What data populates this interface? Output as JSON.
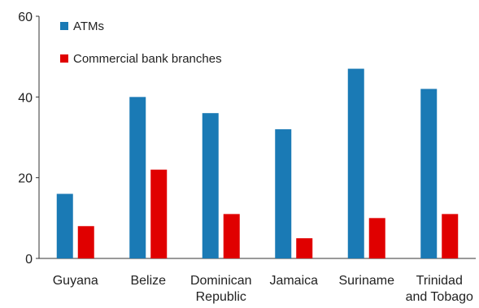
{
  "chart_data": {
    "type": "bar",
    "categories": [
      [
        "Guyana"
      ],
      [
        "Belize"
      ],
      [
        "Dominican",
        "Republic"
      ],
      [
        "Jamaica"
      ],
      [
        "Suriname"
      ],
      [
        "Trinidad",
        "and Tobago"
      ]
    ],
    "series": [
      {
        "name": "ATMs",
        "color": "#1a7ab5",
        "values": [
          16,
          40,
          36,
          32,
          47,
          42
        ]
      },
      {
        "name": "Commercial bank branches",
        "color": "#e00000",
        "values": [
          8,
          22,
          11,
          5,
          10,
          11
        ]
      }
    ],
    "ylim": [
      0,
      60
    ],
    "yticks": [
      0,
      20,
      40,
      60
    ],
    "title": "",
    "xlabel": "",
    "ylabel": "",
    "grid": false,
    "legend_position": "top-left"
  }
}
